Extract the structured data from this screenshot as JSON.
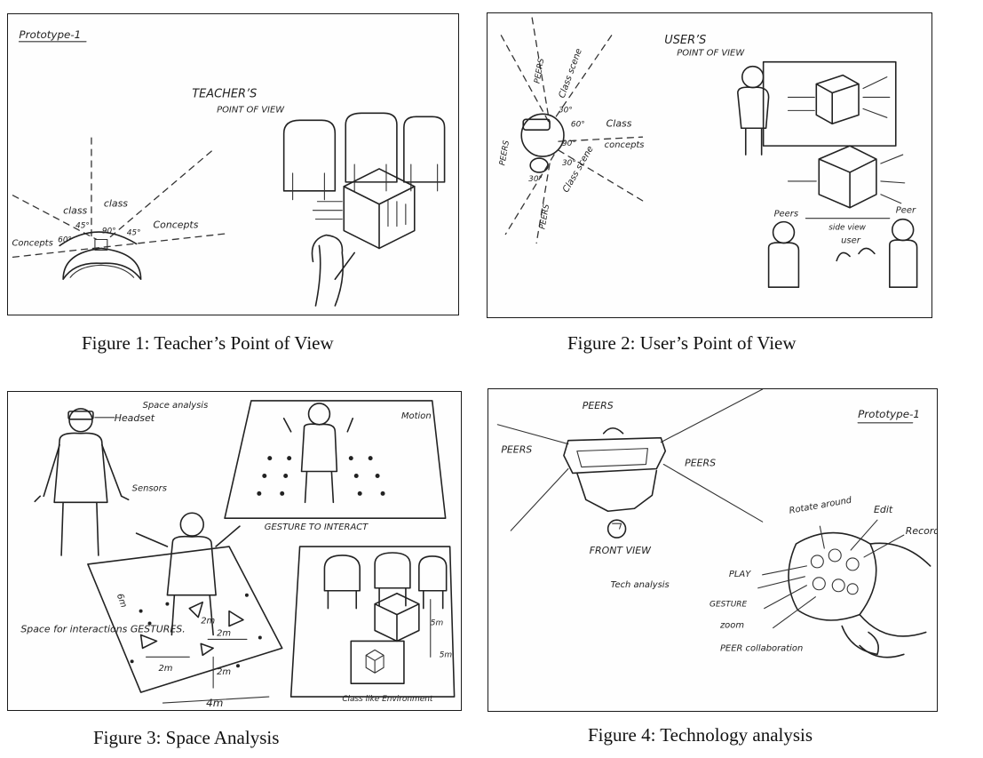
{
  "figures": [
    {
      "caption": "Figure 1: Teacher’s Point of View",
      "sketch_text": {
        "corner_label": "Prototype-1",
        "title_line1": "TEACHER’S",
        "title_line2": "POINT OF VIEW",
        "label_class_left": "class",
        "label_class_right": "class",
        "label_concepts_left": "Concepts",
        "label_concepts_right": "Concepts",
        "angle_45_left": "45°",
        "angle_60_left": "60°",
        "angle_90": "90°",
        "angle_45_right": "45°"
      }
    },
    {
      "caption": "Figure 2: User’s Point of View",
      "sketch_text": {
        "title_line1": "USER’S",
        "title_line2": "POINT OF VIEW",
        "label_peers_top": "PEERS",
        "label_peers_left": "PEERS",
        "label_peers_bottom": "PEERS",
        "label_class_scene_top": "Class scene",
        "label_class": "Class",
        "label_concepts": "concepts",
        "label_class_scene_bottom": "Class scene",
        "angle_30_top": "30°",
        "angle_60": "60°",
        "angle_90": "90°",
        "angle_30_mid": "30°",
        "angle_30_low": "30°",
        "label_peers_right_a": "Peers",
        "label_peers_right_b": "Peer",
        "label_side_view": "side view",
        "label_user": "user"
      }
    },
    {
      "caption": "Figure 3: Space Analysis",
      "sketch_text": {
        "label_space_analysis": "Space analysis",
        "label_headset": "Headset",
        "label_sensors": "Sensors",
        "label_motion": "Motion",
        "label_gesture_to_interact": "GESTURE TO INTERACT",
        "label_space_for": "Space for interactions GESTURES.",
        "label_6m": "6m",
        "label_2m_a": "2m",
        "label_2m_b": "2m",
        "label_2m_c": "2m",
        "label_2m_d": "2m",
        "label_4m": "4m",
        "label_5m_a": "5m",
        "label_5m_b": "5m",
        "label_class_env": "Class like Environment"
      }
    },
    {
      "caption": "Figure 4: Technology analysis",
      "sketch_text": {
        "label_peers_top": "PEERS",
        "label_peers_left": "PEERS",
        "label_peers_right": "PEERS",
        "label_front_view": "FRONT VIEW",
        "label_prototype": "Prototype-1",
        "label_tech_analysis": "Tech analysis",
        "label_rotate_around": "Rotate around",
        "label_edit": "Edit",
        "label_record": "Record",
        "label_play": "PLAY",
        "label_gesture": "GESTURE",
        "label_zoom": "zoom",
        "label_peer_collab": "PEER collaboration"
      }
    }
  ]
}
